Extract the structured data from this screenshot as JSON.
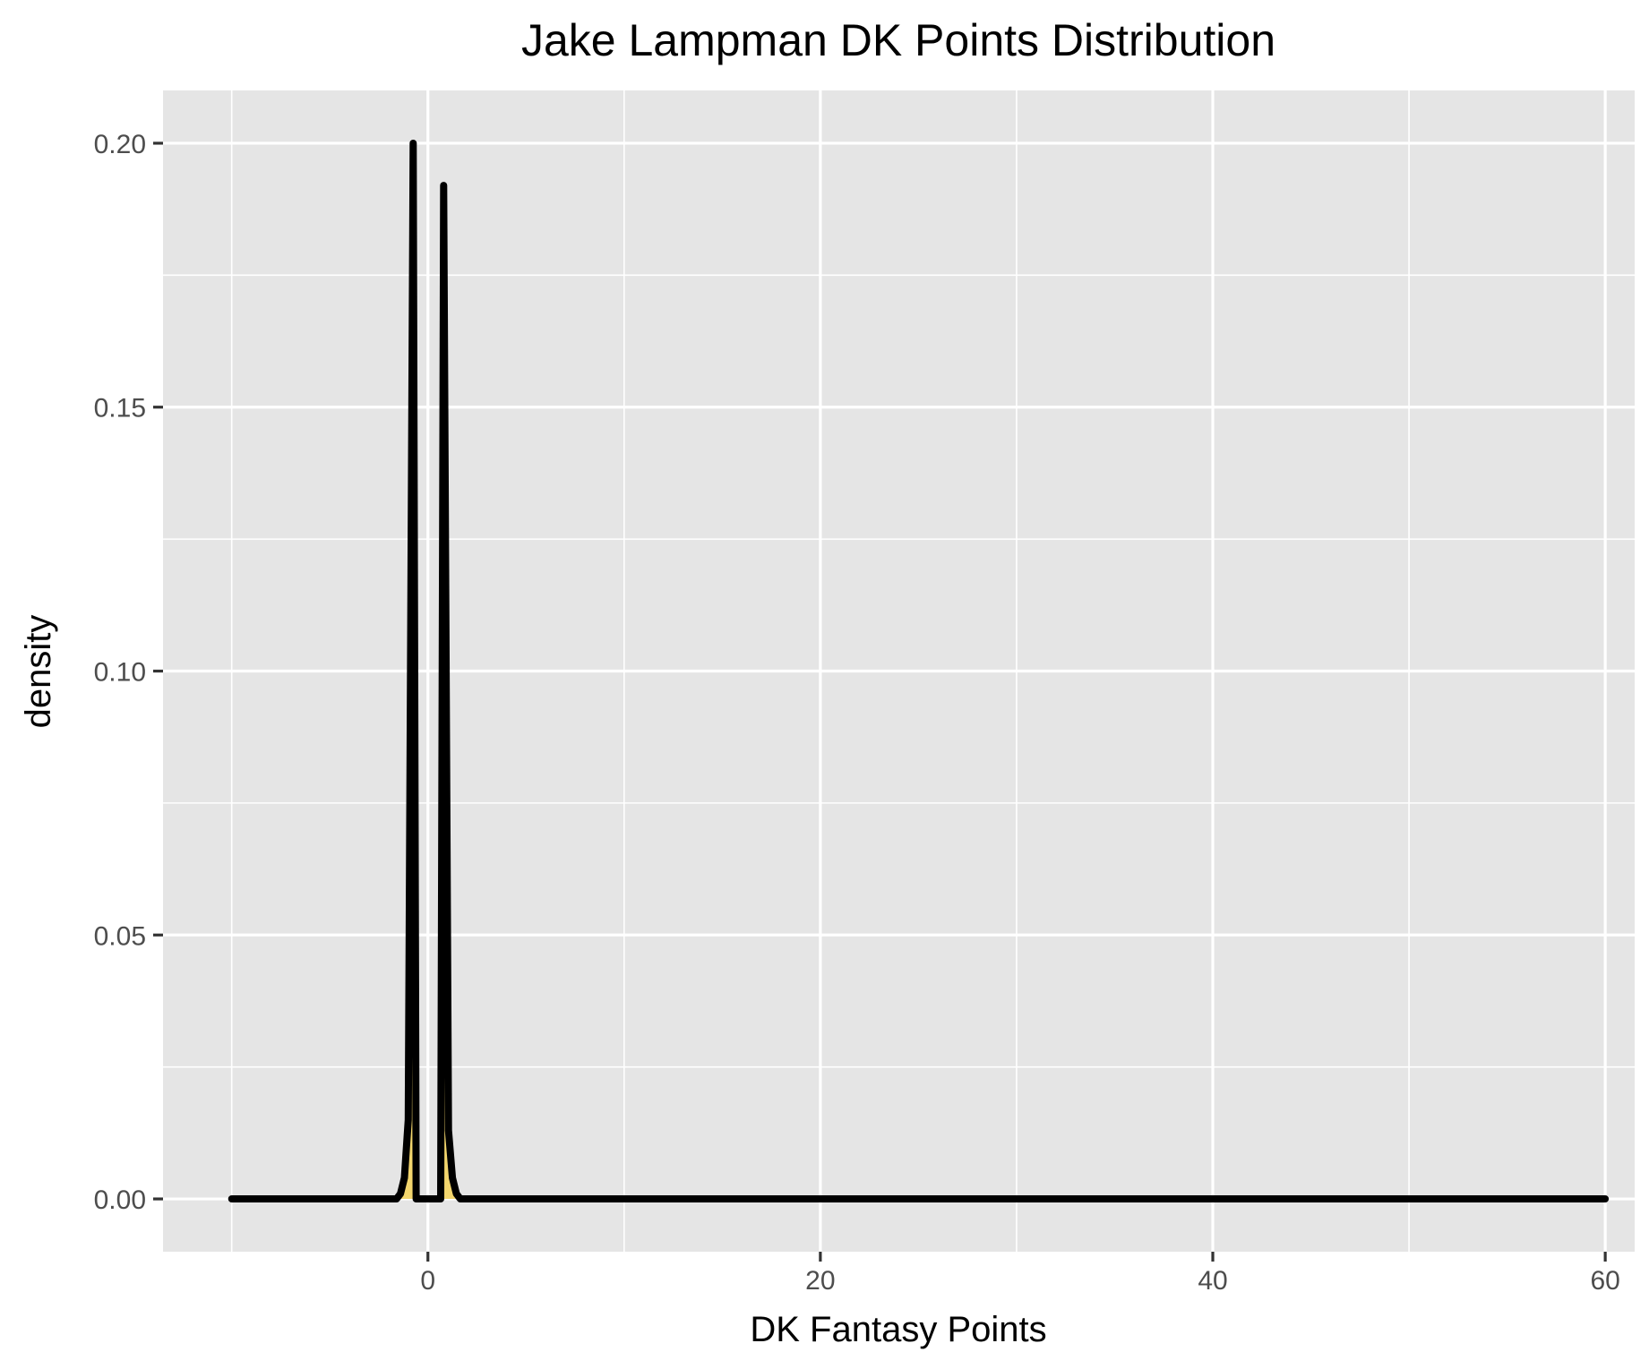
{
  "chart_data": {
    "type": "area",
    "title": "Jake Lampman DK Points Distribution",
    "xlabel": "DK Fantasy Points",
    "ylabel": "density",
    "xlim": [
      -13.5,
      61.5
    ],
    "ylim": [
      -0.01,
      0.21
    ],
    "xticks": [
      0,
      20,
      40,
      60
    ],
    "xtick_labels": [
      "0",
      "20",
      "40",
      "60"
    ],
    "yticks": [
      0.0,
      0.05,
      0.1,
      0.15,
      0.2
    ],
    "ytick_labels": [
      "0.00",
      "0.05",
      "0.10",
      "0.15",
      "0.20"
    ],
    "x_minor": [
      -10,
      10,
      30,
      50
    ],
    "y_minor": [
      0.025,
      0.075,
      0.125,
      0.175
    ],
    "grid": true,
    "legend": "none",
    "colors": {
      "panel": "#e5e5e5",
      "fill": "#f3d66d",
      "line": "#000000",
      "grid": "#ffffff"
    },
    "series": [
      {
        "x": [
          -10,
          -1.6,
          -1.4,
          -1.2,
          -1.0,
          -0.75,
          -0.6,
          0.65,
          0.8,
          1.05,
          1.25,
          1.45,
          1.65,
          60
        ],
        "y": [
          0,
          0,
          0.001,
          0.004,
          0.015,
          0.2,
          0,
          0,
          0.192,
          0.013,
          0.004,
          0.001,
          0,
          0
        ]
      }
    ]
  }
}
